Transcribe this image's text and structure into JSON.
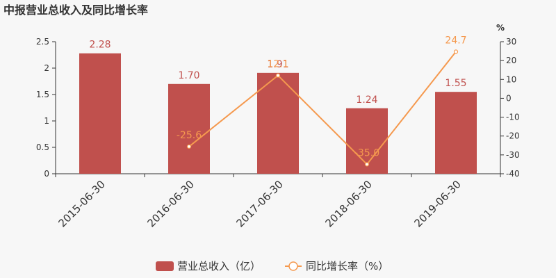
{
  "chart_data": {
    "type": "bar",
    "title": "中报营业总收入及同比增长率",
    "categories": [
      "2015-06-30",
      "2016-06-30",
      "2017-06-30",
      "2018-06-30",
      "2019-06-30"
    ],
    "series": [
      {
        "name": "营业总收入（亿）",
        "type": "bar",
        "axis": "left",
        "values": [
          2.28,
          1.7,
          1.91,
          1.24,
          1.55
        ],
        "labels": [
          "2.28",
          "1.70",
          "1.91",
          "1.24",
          "1.55"
        ],
        "color": "#c0504d"
      },
      {
        "name": "同比增长率（%）",
        "type": "line",
        "axis": "right",
        "values": [
          null,
          -25.6,
          12.1,
          -35.0,
          24.7
        ],
        "labels": [
          "",
          "-25.6",
          "12.1",
          "-35.0",
          "24.7"
        ],
        "color": "#f5994e"
      }
    ],
    "left_axis": {
      "ylim": [
        0,
        2.5
      ],
      "ticks": [
        0,
        0.5,
        1,
        1.5,
        2,
        2.5
      ],
      "tick_labels": [
        "0",
        "0.5",
        "1",
        "1.5",
        "2",
        "2.5"
      ]
    },
    "right_axis": {
      "unit": "%",
      "ylim": [
        -40,
        30
      ],
      "ticks": [
        -40,
        -30,
        -20,
        -10,
        0,
        10,
        20,
        30
      ],
      "tick_labels": [
        "-40",
        "-30",
        "-20",
        "-10",
        "0",
        "10",
        "20",
        "30"
      ]
    },
    "legend": "bottom-center",
    "grid": false
  }
}
